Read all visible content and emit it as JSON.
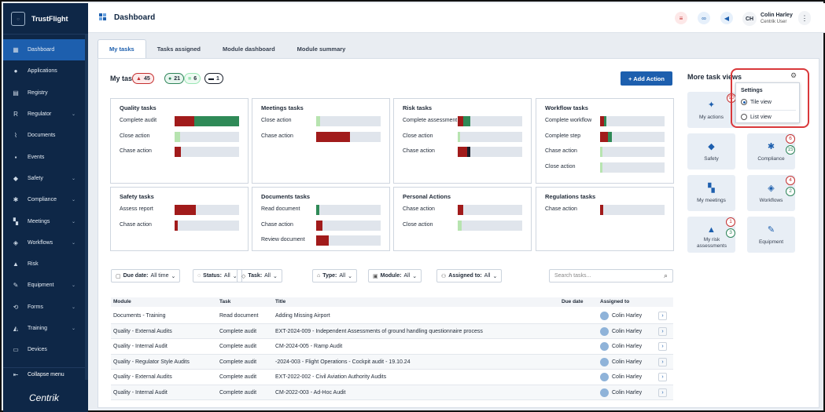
{
  "brand": {
    "name": "TrustFlight",
    "logo_text": "TrustFlight"
  },
  "sidebar": {
    "items": [
      {
        "label": "Dashboard",
        "icon": "dashboard-icon",
        "active": true,
        "chevron": false
      },
      {
        "label": "Applications",
        "icon": "person-icon",
        "chevron": false
      },
      {
        "label": "Registry",
        "icon": "registry-icon",
        "chevron": false
      },
      {
        "label": "Regulator",
        "icon": "regulator-icon",
        "glyph": "R",
        "chevron": true
      },
      {
        "label": "Documents",
        "icon": "paperclip-icon",
        "chevron": false
      },
      {
        "label": "Events",
        "icon": "events-icon",
        "chevron": false
      },
      {
        "label": "Safety",
        "icon": "shield-icon",
        "chevron": true
      },
      {
        "label": "Compliance",
        "icon": "compliance-icon",
        "chevron": true
      },
      {
        "label": "Meetings",
        "icon": "meetings-icon",
        "chevron": true
      },
      {
        "label": "Workflows",
        "icon": "workflows-icon",
        "chevron": true
      },
      {
        "label": "Risk",
        "icon": "risk-icon",
        "chevron": false
      },
      {
        "label": "Equipment",
        "icon": "wrench-icon",
        "chevron": true
      },
      {
        "label": "Forms",
        "icon": "forms-icon",
        "chevron": true
      },
      {
        "label": "Training",
        "icon": "graduation-cap-icon",
        "chevron": true
      },
      {
        "label": "Devices",
        "icon": "devices-icon",
        "chevron": false
      }
    ],
    "collapse_label": "Collapse menu",
    "footer_logo": "Centrik"
  },
  "header": {
    "title": "Dashboard",
    "user_initials": "CH",
    "user_name": "Colin Harley",
    "user_role": "Centrik User"
  },
  "tabs": [
    "My tasks",
    "Tasks assigned",
    "Module dashboard",
    "Module summary"
  ],
  "my_tasks": {
    "title": "My tasks",
    "chips": [
      {
        "value": "45",
        "color": "#c53030"
      },
      {
        "value": "21",
        "color": "#2f855a"
      },
      {
        "value": "6",
        "color": "#9ae6b4"
      },
      {
        "value": "1",
        "color": "#1a202c"
      }
    ],
    "add_label": "+ Add Action"
  },
  "cards": [
    {
      "title": "Quality tasks",
      "rows": [
        {
          "label": "Complete audit",
          "red": 0.3,
          "green": 0.7
        },
        {
          "label": "Close action",
          "lightgreen": 0.08
        },
        {
          "label": "Chase action",
          "red": 0.1
        }
      ]
    },
    {
      "title": "Meetings tasks",
      "rows": [
        {
          "label": "Close action",
          "lightgreen": 0.06
        },
        {
          "label": "Chase action",
          "red": 0.52
        }
      ]
    },
    {
      "title": "Risk tasks",
      "rows": [
        {
          "label": "Complete assessment",
          "red": 0.08,
          "green": 0.12
        },
        {
          "label": "Close action",
          "lightgreen": 0.04
        },
        {
          "label": "Chase action",
          "red": 0.15,
          "dark": 0.04
        }
      ]
    },
    {
      "title": "Workflow tasks",
      "rows": [
        {
          "label": "Complete workflow",
          "red": 0.06,
          "green": 0.04
        },
        {
          "label": "Complete step",
          "red": 0.12,
          "green": 0.06
        },
        {
          "label": "Chase action",
          "lightgreen": 0.04
        },
        {
          "label": "Close action",
          "lightgreen": 0.04
        }
      ]
    },
    {
      "title": "Safety tasks",
      "rows": [
        {
          "label": "Assess report",
          "red": 0.33
        },
        {
          "label": "Chase action",
          "red": 0.05
        }
      ]
    },
    {
      "title": "Documents tasks",
      "rows": [
        {
          "label": "Read document",
          "green": 0.05
        },
        {
          "label": "Chase action",
          "red": 0.1
        },
        {
          "label": "Review document",
          "red": 0.2
        }
      ]
    },
    {
      "title": "Personal Actions",
      "rows": [
        {
          "label": "Chase action",
          "red": 0.08
        },
        {
          "label": "Close action",
          "lightgreen": 0.06
        }
      ]
    },
    {
      "title": "Regulations tasks",
      "rows": [
        {
          "label": "Chase action",
          "red": 0.05
        }
      ]
    }
  ],
  "filters": [
    {
      "label": "Due date:",
      "value": "All time"
    },
    {
      "label": "Status:",
      "value": "All"
    },
    {
      "label": "Task:",
      "value": "All"
    },
    {
      "label": "Type:",
      "value": "All"
    },
    {
      "label": "Module:",
      "value": "All"
    },
    {
      "label": "Assigned to:",
      "value": "All"
    }
  ],
  "search_placeholder": "Search tasks...",
  "table": {
    "headers": [
      "Module",
      "Task",
      "Title",
      "Due date",
      "Assigned to"
    ],
    "rows": [
      [
        "Documents - Training",
        "Read document",
        "Adding Missing Airport",
        "",
        "Colin Harley"
      ],
      [
        "Quality - External Audits",
        "Complete audit",
        "EXT-2024-009 - Independent Assessments of ground handling questionnaire process",
        "",
        "Colin Harley"
      ],
      [
        "Quality - Internal Audit",
        "Complete audit",
        "CM-2024-005 - Ramp Audit",
        "",
        "Colin Harley"
      ],
      [
        "Quality - Regulator Style Audits",
        "Complete audit",
        "-2024-003 - Flight Operations - Cockpit audit - 19.10.24",
        "",
        "Colin Harley"
      ],
      [
        "Quality - External Audits",
        "Complete audit",
        "EXT-2022-002 - Civil Aviation Authority Audits",
        "",
        "Colin Harley"
      ],
      [
        "Quality - Internal Audit",
        "Complete audit",
        "CM-2022-003 - Ad-Hoc Audit",
        "",
        "Colin Harley"
      ]
    ]
  },
  "task_views": {
    "title": "More task views",
    "settings": {
      "title": "Settings",
      "tile_view": "Tile view",
      "list_view": "List view",
      "selected": "tile"
    },
    "tiles": [
      {
        "label": "My actions",
        "icon": "people-icon"
      },
      {
        "label": "Safety",
        "icon": "shield-icon"
      },
      {
        "label": "Compliance",
        "icon": "compliance-icon",
        "badges": [
          "6",
          "15"
        ]
      },
      {
        "label": "My meetings",
        "icon": "meetings-icon"
      },
      {
        "label": "Workflows",
        "icon": "workflows-icon",
        "badges": [
          "4",
          "2"
        ]
      },
      {
        "label": "My risk assessments",
        "icon": "risk-icon",
        "badges": [
          "1",
          "3"
        ]
      },
      {
        "label": "Equipment",
        "icon": "wrench-icon"
      }
    ],
    "my_actions_badge": "90"
  }
}
